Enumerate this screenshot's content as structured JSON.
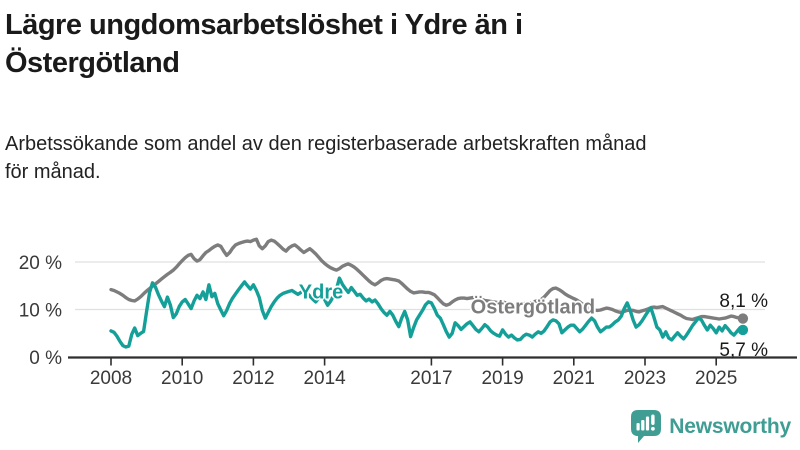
{
  "title": {
    "full": "Lägre ungdomsarbetslöshet i Ydre än i Östergötland",
    "lines": [
      "Lägre ungdomsarbetslöshet i Ydre än i",
      "Östergötland"
    ]
  },
  "subtitle": {
    "full": "Arbetssökande som andel av den registerbaserade arbetskraften månad för månad.",
    "lines": [
      "Arbetssökande som andel av den registerbaserade arbetskraften månad",
      "för månad."
    ]
  },
  "branding": {
    "name": "Newsworthy",
    "icon": "bar-chart-speech-bubble-icon",
    "color": "#3f9d93"
  },
  "chart_data": {
    "type": "line",
    "x_unit": "time, monthly points",
    "x_start": "2008-01",
    "x_end": "2025-10",
    "ylim": [
      0,
      28
    ],
    "grid": "horizontal",
    "y_ticks": [
      {
        "value": 0,
        "label": "0 %"
      },
      {
        "value": 10,
        "label": "10 %"
      },
      {
        "value": 20,
        "label": "20 %"
      }
    ],
    "x_ticks": [
      {
        "year": 2008,
        "label": "2008"
      },
      {
        "year": 2010,
        "label": "2010"
      },
      {
        "year": 2012,
        "label": "2012"
      },
      {
        "year": 2014,
        "label": "2014"
      },
      {
        "year": 2017,
        "label": "2017"
      },
      {
        "year": 2019,
        "label": "2019"
      },
      {
        "year": 2021,
        "label": "2021"
      },
      {
        "year": 2023,
        "label": "2023"
      },
      {
        "year": 2025,
        "label": "2025"
      }
    ],
    "series": [
      {
        "name": "Östergötland",
        "color": "#7d7d7d",
        "end_label": "8,1 %",
        "end_value": 8.1,
        "values": [
          14.2,
          14.0,
          13.7,
          13.4,
          13.0,
          12.5,
          12.1,
          11.9,
          11.8,
          12.2,
          12.7,
          13.3,
          13.9,
          14.4,
          14.9,
          15.4,
          15.9,
          16.4,
          16.9,
          17.4,
          17.8,
          18.3,
          18.9,
          19.6,
          20.3,
          20.9,
          21.4,
          21.6,
          20.7,
          20.2,
          20.5,
          21.3,
          22.0,
          22.4,
          22.9,
          23.3,
          23.6,
          23.3,
          22.3,
          21.4,
          22.0,
          22.9,
          23.6,
          23.9,
          24.1,
          24.3,
          24.4,
          24.3,
          24.6,
          24.8,
          23.4,
          22.8,
          23.4,
          24.3,
          24.6,
          24.4,
          23.9,
          23.3,
          22.7,
          22.3,
          23.0,
          23.4,
          23.6,
          23.1,
          22.5,
          22.0,
          22.4,
          22.8,
          22.3,
          21.7,
          21.0,
          20.3,
          19.7,
          19.2,
          18.8,
          18.5,
          18.3,
          18.6,
          19.1,
          19.4,
          19.6,
          19.3,
          18.9,
          18.4,
          17.8,
          17.2,
          16.6,
          16.0,
          15.5,
          15.2,
          15.6,
          16.1,
          16.4,
          16.5,
          16.4,
          16.3,
          16.2,
          16.0,
          15.5,
          14.9,
          14.3,
          13.8,
          13.5,
          13.6,
          13.7,
          13.7,
          13.6,
          13.6,
          13.4,
          13.1,
          12.5,
          11.8,
          11.2,
          10.9,
          11.1,
          11.6,
          12.0,
          12.3,
          12.4,
          12.4,
          12.3,
          12.4,
          12.5,
          12.4,
          12.2,
          12.1,
          11.9,
          11.8,
          11.7,
          11.6,
          11.5,
          11.5,
          11.6,
          11.4,
          11.2,
          11.1,
          11.0,
          11.0,
          11.1,
          11.2,
          11.3,
          11.4,
          11.5,
          11.7,
          11.9,
          12.1,
          12.6,
          13.3,
          14.0,
          14.4,
          14.5,
          14.2,
          13.8,
          13.3,
          12.9,
          12.6,
          12.3,
          12.0,
          11.6,
          11.1,
          10.7,
          10.3,
          10.0,
          9.9,
          9.8,
          9.9,
          10.1,
          10.3,
          10.2,
          10.0,
          9.7,
          9.5,
          9.4,
          9.6,
          9.8,
          9.9,
          9.8,
          9.6,
          9.5,
          9.7,
          9.9,
          10.1,
          10.4,
          10.5,
          10.4,
          10.5,
          10.6,
          10.3,
          10.0,
          9.7,
          9.4,
          9.1,
          8.8,
          8.4,
          8.1,
          8.0,
          7.9,
          8.1,
          8.3,
          8.5,
          8.5,
          8.4,
          8.3,
          8.2,
          8.1,
          8.0,
          8.1,
          8.2,
          8.4,
          8.6,
          8.5,
          8.3,
          8.2,
          8.1
        ]
      },
      {
        "name": "Ydre",
        "color": "#14a098",
        "end_label": "5,7 %",
        "end_value": 5.7,
        "values": [
          5.5,
          5.2,
          4.4,
          3.3,
          2.4,
          2.1,
          2.3,
          4.8,
          6.1,
          4.5,
          5.0,
          5.4,
          9.6,
          13.6,
          15.6,
          14.7,
          13.1,
          11.8,
          10.6,
          12.6,
          11.0,
          8.3,
          9.1,
          10.6,
          11.6,
          12.1,
          11.2,
          10.2,
          11.8,
          13.0,
          12.3,
          13.7,
          12.1,
          15.2,
          12.7,
          13.4,
          11.2,
          9.9,
          8.7,
          9.8,
          11.3,
          12.4,
          13.3,
          14.2,
          15.0,
          15.8,
          15.0,
          14.3,
          15.2,
          14.0,
          12.5,
          9.8,
          8.2,
          9.4,
          10.6,
          11.6,
          12.4,
          13.0,
          13.4,
          13.6,
          13.8,
          14.0,
          13.6,
          13.2,
          13.6,
          14.0,
          13.5,
          12.8,
          12.2,
          11.6,
          12.4,
          13.2,
          12.1,
          10.9,
          11.7,
          12.9,
          14.3,
          16.6,
          15.3,
          14.4,
          13.6,
          14.6,
          13.8,
          13.0,
          13.2,
          12.4,
          11.8,
          12.2,
          11.6,
          12.0,
          11.2,
          10.2,
          9.4,
          8.8,
          9.6,
          8.8,
          7.5,
          6.4,
          8.2,
          9.6,
          7.8,
          4.3,
          6.2,
          7.8,
          8.8,
          9.8,
          11.0,
          11.6,
          11.4,
          10.2,
          8.8,
          8.2,
          6.8,
          5.4,
          4.2,
          5.0,
          7.2,
          6.6,
          5.8,
          6.4,
          7.0,
          7.4,
          6.6,
          5.8,
          5.3,
          6.0,
          6.8,
          6.3,
          5.5,
          5.0,
          4.6,
          4.4,
          5.7,
          4.8,
          4.2,
          4.6,
          4.0,
          3.6,
          3.7,
          4.4,
          4.8,
          4.6,
          4.2,
          4.8,
          5.3,
          5.0,
          5.5,
          6.4,
          7.4,
          7.8,
          7.6,
          7.0,
          5.1,
          5.7,
          6.3,
          6.7,
          6.7,
          6.0,
          5.3,
          5.9,
          6.7,
          7.5,
          8.2,
          7.6,
          6.3,
          5.3,
          5.8,
          6.3,
          6.3,
          6.8,
          7.4,
          7.8,
          8.6,
          10.2,
          11.4,
          9.8,
          7.8,
          6.3,
          6.8,
          7.6,
          8.6,
          9.6,
          10.3,
          8.4,
          6.3,
          5.7,
          4.2,
          5.3,
          4.0,
          3.6,
          4.4,
          5.1,
          4.4,
          3.8,
          4.6,
          5.6,
          6.6,
          7.4,
          8.2,
          7.8,
          6.7,
          5.7,
          6.7,
          6.0,
          5.1,
          6.3,
          5.5,
          6.6,
          5.9,
          5.1,
          4.6,
          5.4,
          6.1,
          5.7
        ]
      }
    ],
    "series_annotations": [
      {
        "series_index": 1,
        "year": 2013.9,
        "value": 13.4
      },
      {
        "series_index": 0,
        "year": 2019.85,
        "value": 10.3
      }
    ]
  }
}
